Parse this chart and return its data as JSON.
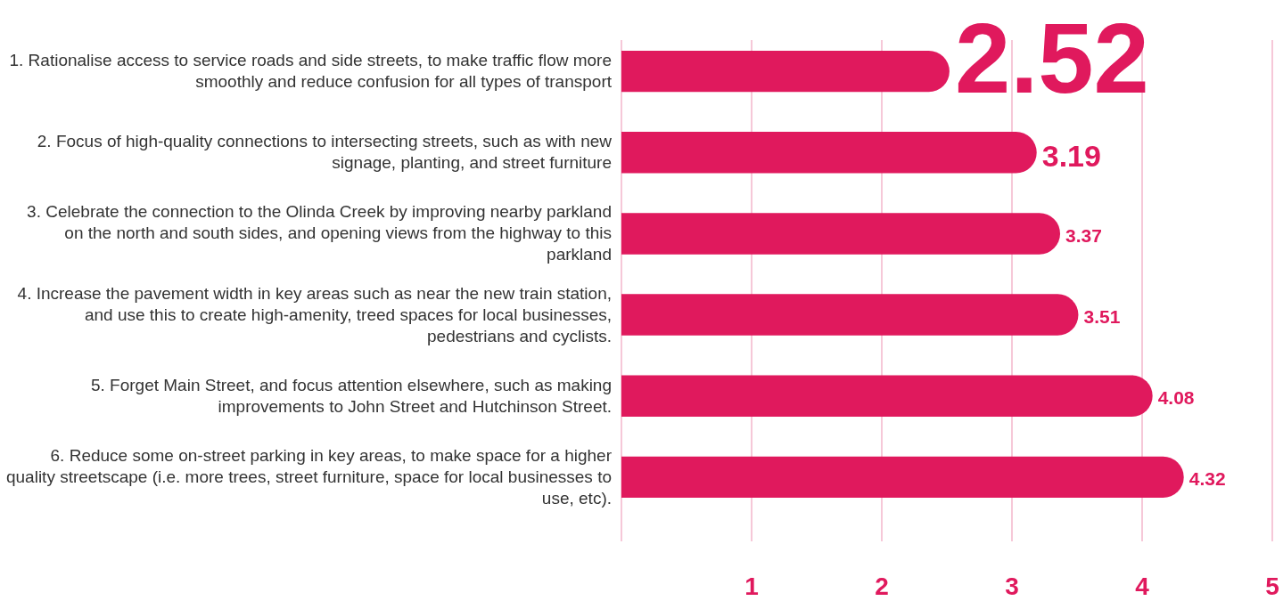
{
  "chart_data": {
    "type": "bar",
    "orientation": "horizontal",
    "categories": [
      "1. Rationalise access to service roads and side streets, to make traffic flow more smoothly and reduce confusion for all types of transport",
      "2. Focus of high-quality connections to intersecting streets, such as with new signage, planting, and street furniture",
      "3. Celebrate the connection to the Olinda Creek by improving nearby parkland on the north and south sides, and opening views from the highway to this parkland",
      "4. Increase the pavement width in key areas such as near the new train station, and use this to create high-amenity, treed spaces for local businesses, pedestrians and cyclists.",
      "5. Forget Main Street, and focus attention elsewhere, such as making improvements to John Street and Hutchinson Street.",
      "6. Reduce some on-street parking in key areas, to make space for a higher quality streetscape (i.e. more trees, street furniture, space for local businesses to use, etc)."
    ],
    "values": [
      2.52,
      3.19,
      3.37,
      3.51,
      4.08,
      4.32
    ],
    "color": "#e0195d",
    "xlim": [
      0,
      5
    ],
    "xticks": [
      {
        "value": 0,
        "label": null
      },
      1,
      2,
      3,
      4,
      5
    ],
    "grid": "x",
    "data_labels": true
  }
}
